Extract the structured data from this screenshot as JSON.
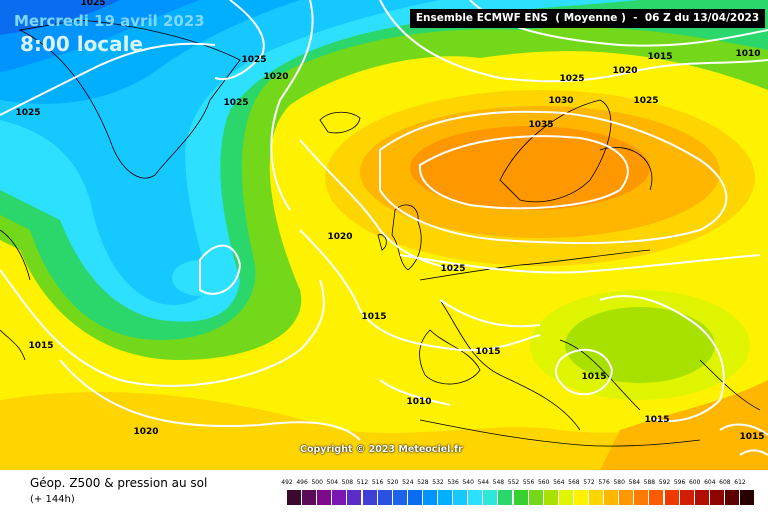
{
  "header": {
    "date": "Mercredi 19 avril 2023",
    "time": "8:00 locale",
    "run_info": "Ensemble ECMWF ENS  ( Moyenne )  -  06 Z du 13/04/2023"
  },
  "isobar_labels": [
    "1025",
    "1025",
    "1025",
    "1020",
    "1025",
    "1025",
    "1020",
    "1015",
    "1010",
    "1030",
    "1025",
    "1035",
    "1020",
    "1025",
    "1015",
    "1015",
    "1015",
    "1010",
    "1015",
    "1020",
    "1015",
    "1015"
  ],
  "copyright": "Copyright © 2023 Meteociel.fr",
  "footer": {
    "field": "Géop. Z500 & pression au sol",
    "forecast_hour": "(+ 144h)"
  },
  "scale": {
    "labels": [
      "492",
      "496",
      "500",
      "504",
      "508",
      "512",
      "516",
      "520",
      "524",
      "528",
      "532",
      "536",
      "540",
      "544",
      "548",
      "552",
      "556",
      "560",
      "564",
      "568",
      "572",
      "576",
      "580",
      "584",
      "588",
      "592",
      "596",
      "600",
      "604",
      "608",
      "612"
    ],
    "colors": [
      "#3a0a2e",
      "#5c0b57",
      "#7d0a8a",
      "#7a17b0",
      "#5a2cc8",
      "#3f3fd8",
      "#2b51e0",
      "#1d62ea",
      "#0a6df0",
      "#0094ff",
      "#00b0ff",
      "#15c8ff",
      "#2de0ff",
      "#2de8d8",
      "#2bd66b",
      "#38d030",
      "#74d81a",
      "#a8e000",
      "#dff500",
      "#fff200",
      "#ffd500",
      "#ffb600",
      "#ff9800",
      "#ff7a00",
      "#ff5a00",
      "#ee3a00",
      "#d21e00",
      "#b30c00",
      "#8e0500",
      "#5d0000",
      "#280000"
    ]
  },
  "colors": {
    "heading_date": "#7fd7ff",
    "heading_time": "#d9f3ff",
    "isobar": "#ffffff",
    "coast": "#000000",
    "header_bg": "#000000"
  }
}
